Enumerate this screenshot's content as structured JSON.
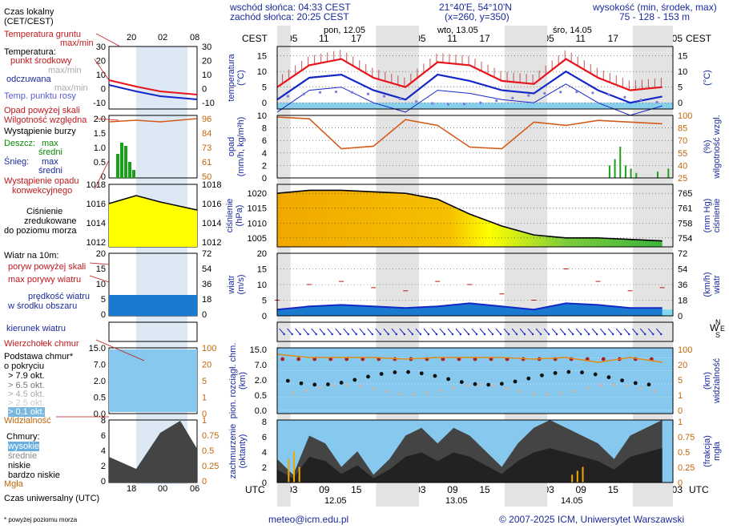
{
  "header": {
    "sunrise": "wschód słońca: 04:33 CEST",
    "sunset": "zachód słońca: 20:25 CEST",
    "coords": "21°40'E, 54°10'N",
    "grid": "(x=260, y=350)",
    "height_label": "wysokość (min, środek, max)",
    "height_values": "75 - 128 - 153 m"
  },
  "legend": {
    "local_time": "Czas lokalny",
    "local_time_zone": "(CET/CEST)",
    "small_ticks_top": [
      "20",
      "02",
      "08"
    ],
    "ground_temp": "Temperatura gruntu",
    "maxmin": "max/min",
    "temperature": "Temperatura:",
    "mid_point": "punkt środkowy",
    "max_min_grey": "max/min",
    "felt": "odczuwana",
    "felt_maxmin": "max/min",
    "dew_point": "Temp. punktu rosy",
    "precip_skill": "Opad powyżej skali",
    "humidity": "Wilgotność względna",
    "storm": "Wystąpienie burzy",
    "rain": "Deszcz:",
    "rain_max": "max",
    "rain_mid": "średni",
    "snow": "Śnieg:",
    "snow_max": "max",
    "snow_mid": "średni",
    "conv_precip_1": "Wystąpienie opadu",
    "conv_precip_2": "konwekcyjnego",
    "pressure_1": "Ciśnienie",
    "pressure_2": "zredukowane",
    "pressure_3": "do poziomu morza",
    "wind_at": "Wiatr na 10m:",
    "gust_over": "poryw powyżej skali",
    "max_gust": "max porywy wiatru",
    "wind_speed_1": "prędkość wiatru",
    "wind_speed_2": "w środku obszaru",
    "wind_dir": "kierunek wiatru",
    "cloud_top": "Wierzchołek chmur",
    "cloud_base_1": "Podstawa chmur*",
    "cloud_base_2": "o pokryciu",
    "okt_79": "> 7.9 okt.",
    "okt_65": "> 6.5 okt.",
    "okt_45": "> 4.5 okt.",
    "okt_25": "> 2.5 okt.",
    "okt_01": "> 0.1 okt.",
    "visibility": "Widzialność",
    "clouds": "Chmury:",
    "cl_high": "wysokie",
    "cl_mid": "średnie",
    "cl_low": "niskie",
    "cl_vlow": "bardzo niskie",
    "fog": "Mgła",
    "utc_label": "Czas uniwersalny (UTC)",
    "small_ticks_bottom": [
      "18",
      "00",
      "06"
    ],
    "footnote": "* powyżej poziomu morza"
  },
  "small_axes": {
    "temp_left": [
      "30",
      "20",
      "10",
      "0",
      "-10"
    ],
    "temp_right": [
      "30",
      "20",
      "10",
      "0",
      "-10"
    ],
    "precip_left": [
      "2.0",
      "1.5",
      "1.0",
      "0.5",
      "0"
    ],
    "precip_right": [
      "96",
      "84",
      "73",
      "61",
      "50"
    ],
    "pres_left": [
      "1018",
      "1016",
      "1014",
      "1012"
    ],
    "pres_right": [
      "1018",
      "1016",
      "1014",
      "1012"
    ],
    "wind_left": [
      "20",
      "15",
      "10",
      "5",
      "0"
    ],
    "wind_right": [
      "72",
      "54",
      "36",
      "18",
      "0"
    ],
    "cloud_left": [
      "15.0",
      "7.0",
      "2.0",
      "0.5",
      "0.0"
    ],
    "cloud_right": [
      "100",
      "20",
      "5",
      "1",
      "0"
    ],
    "frac_left": [
      "8",
      "6",
      "4",
      "2",
      "0"
    ],
    "frac_right": [
      "1",
      "0.75",
      "0.5",
      "0.25",
      "0"
    ]
  },
  "main": {
    "tz_local": "CEST",
    "tz_utc": "UTC",
    "days": [
      "pon, 12.05",
      "wto, 13.05",
      "śro, 14.05"
    ],
    "days_utc": [
      "12.05",
      "13.05",
      "14.05"
    ],
    "local_hours": [
      "05",
      "11",
      "17",
      "23",
      "05",
      "11",
      "17",
      "23",
      "05",
      "11",
      "17",
      "23",
      "05"
    ],
    "utc_hours": [
      "03",
      "09",
      "15",
      "21",
      "03",
      "09",
      "15",
      "21",
      "03",
      "09",
      "15",
      "21",
      "03"
    ],
    "axis_temp": [
      "temperatura",
      "(°C)"
    ],
    "axis_precip": [
      "opad",
      "(mm/h, kg/m²h)"
    ],
    "axis_humid": [
      "(%)",
      "wilgotność wzgl."
    ],
    "axis_pres": [
      "ciśnienie",
      "(hPa)"
    ],
    "axis_pres_r": [
      "(mm Hg)",
      "ciśnienie"
    ],
    "axis_wind": [
      "wiatr",
      "(m/s)"
    ],
    "axis_wind_r": [
      "(km/h)",
      "wiatr"
    ],
    "axis_cloud": [
      "pion. rozciągł. chm.",
      "(km)"
    ],
    "axis_vis": [
      "(km)",
      "widzialność"
    ],
    "axis_frac": [
      "zachmurzenie",
      "(oktanty)"
    ],
    "axis_frac_r": [
      "(frakcja)",
      "mgła"
    ],
    "compass": [
      "W",
      "N",
      "S",
      "E"
    ]
  },
  "chart_data": [
    {
      "type": "line",
      "name": "temperature",
      "x_hours_utc": [
        0,
        6,
        12,
        18,
        24,
        30,
        36,
        42,
        48,
        54,
        60,
        66,
        72
      ],
      "series": [
        {
          "name": "max",
          "values": [
            5,
            12,
            14,
            8,
            5,
            13,
            12,
            7,
            6,
            14,
            8,
            4,
            5
          ]
        },
        {
          "name": "mid",
          "values": [
            3,
            10,
            11,
            6,
            3,
            11,
            9,
            6,
            5,
            12,
            6,
            2,
            4
          ]
        },
        {
          "name": "min",
          "values": [
            1,
            8,
            9,
            4,
            1,
            8,
            7,
            5,
            4,
            10,
            4,
            0,
            3
          ]
        }
      ],
      "y_ticks": [
        "15",
        "10",
        "5",
        "0"
      ],
      "ylim": [
        -2,
        18
      ]
    },
    {
      "type": "line",
      "name": "precipitation_humidity",
      "series": [
        {
          "name": "humidity",
          "values": [
            98,
            96,
            60,
            63,
            95,
            88,
            62,
            60,
            92,
            88,
            94,
            92,
            90
          ]
        }
      ],
      "y_ticks_left": [
        "10",
        "8",
        "6",
        "4",
        "2",
        "0"
      ],
      "y_ticks_right": [
        "100",
        "85",
        "70",
        "55",
        "40",
        "25"
      ],
      "ylim": [
        0,
        10
      ]
    },
    {
      "type": "area",
      "name": "pressure",
      "values": [
        1020,
        1021,
        1021,
        1020.5,
        1020,
        1018,
        1013,
        1009,
        1006,
        1005,
        1005,
        1004.5,
        1004
      ],
      "y_ticks_left": [
        "1020",
        "1015",
        "1010",
        "1005"
      ],
      "y_ticks_right": [
        "765",
        "761",
        "758",
        "754"
      ],
      "ylim": [
        1002,
        1023
      ]
    },
    {
      "type": "line",
      "name": "wind",
      "series": [
        {
          "name": "speed",
          "values": [
            2,
            3,
            3.5,
            3,
            2.5,
            3,
            4,
            3,
            2,
            4,
            3.5,
            2.5,
            2.5
          ]
        },
        {
          "name": "gust",
          "values": [
            5,
            10,
            11,
            9,
            8,
            11,
            10,
            7,
            5,
            15,
            11,
            8,
            9
          ]
        }
      ],
      "y_ticks_left": [
        "20",
        "15",
        "10",
        "5",
        "0"
      ],
      "y_ticks_right": [
        "72",
        "54",
        "36",
        "18",
        "0"
      ],
      "ylim": [
        0,
        20
      ]
    },
    {
      "type": "scatter",
      "name": "cloud",
      "y_ticks_left": [
        "15.0",
        "7.0",
        "2.0",
        "0.5",
        "0.0"
      ],
      "y_ticks_right": [
        "100",
        "20",
        "5",
        "1",
        "0"
      ]
    },
    {
      "type": "area",
      "name": "cloud_fraction",
      "y_ticks_left": [
        "8",
        "6",
        "4",
        "2",
        "0"
      ],
      "y_ticks_right": [
        "1",
        "0.75",
        "0.5",
        "0.25",
        "0"
      ]
    }
  ],
  "footer": {
    "email": "meteo@icm.edu.pl",
    "copyright": "© 2007-2025 ICM, Uniwersytet Warszawski"
  },
  "colors": {
    "temp_red": "#e8141c",
    "temp_blue": "#1428c8",
    "pressure_orange": "#f5a800",
    "pressure_yellow": "#ffff00",
    "pressure_green": "#3cb43c",
    "sky": "#87ceeb",
    "humidity": "#d45a1a"
  }
}
